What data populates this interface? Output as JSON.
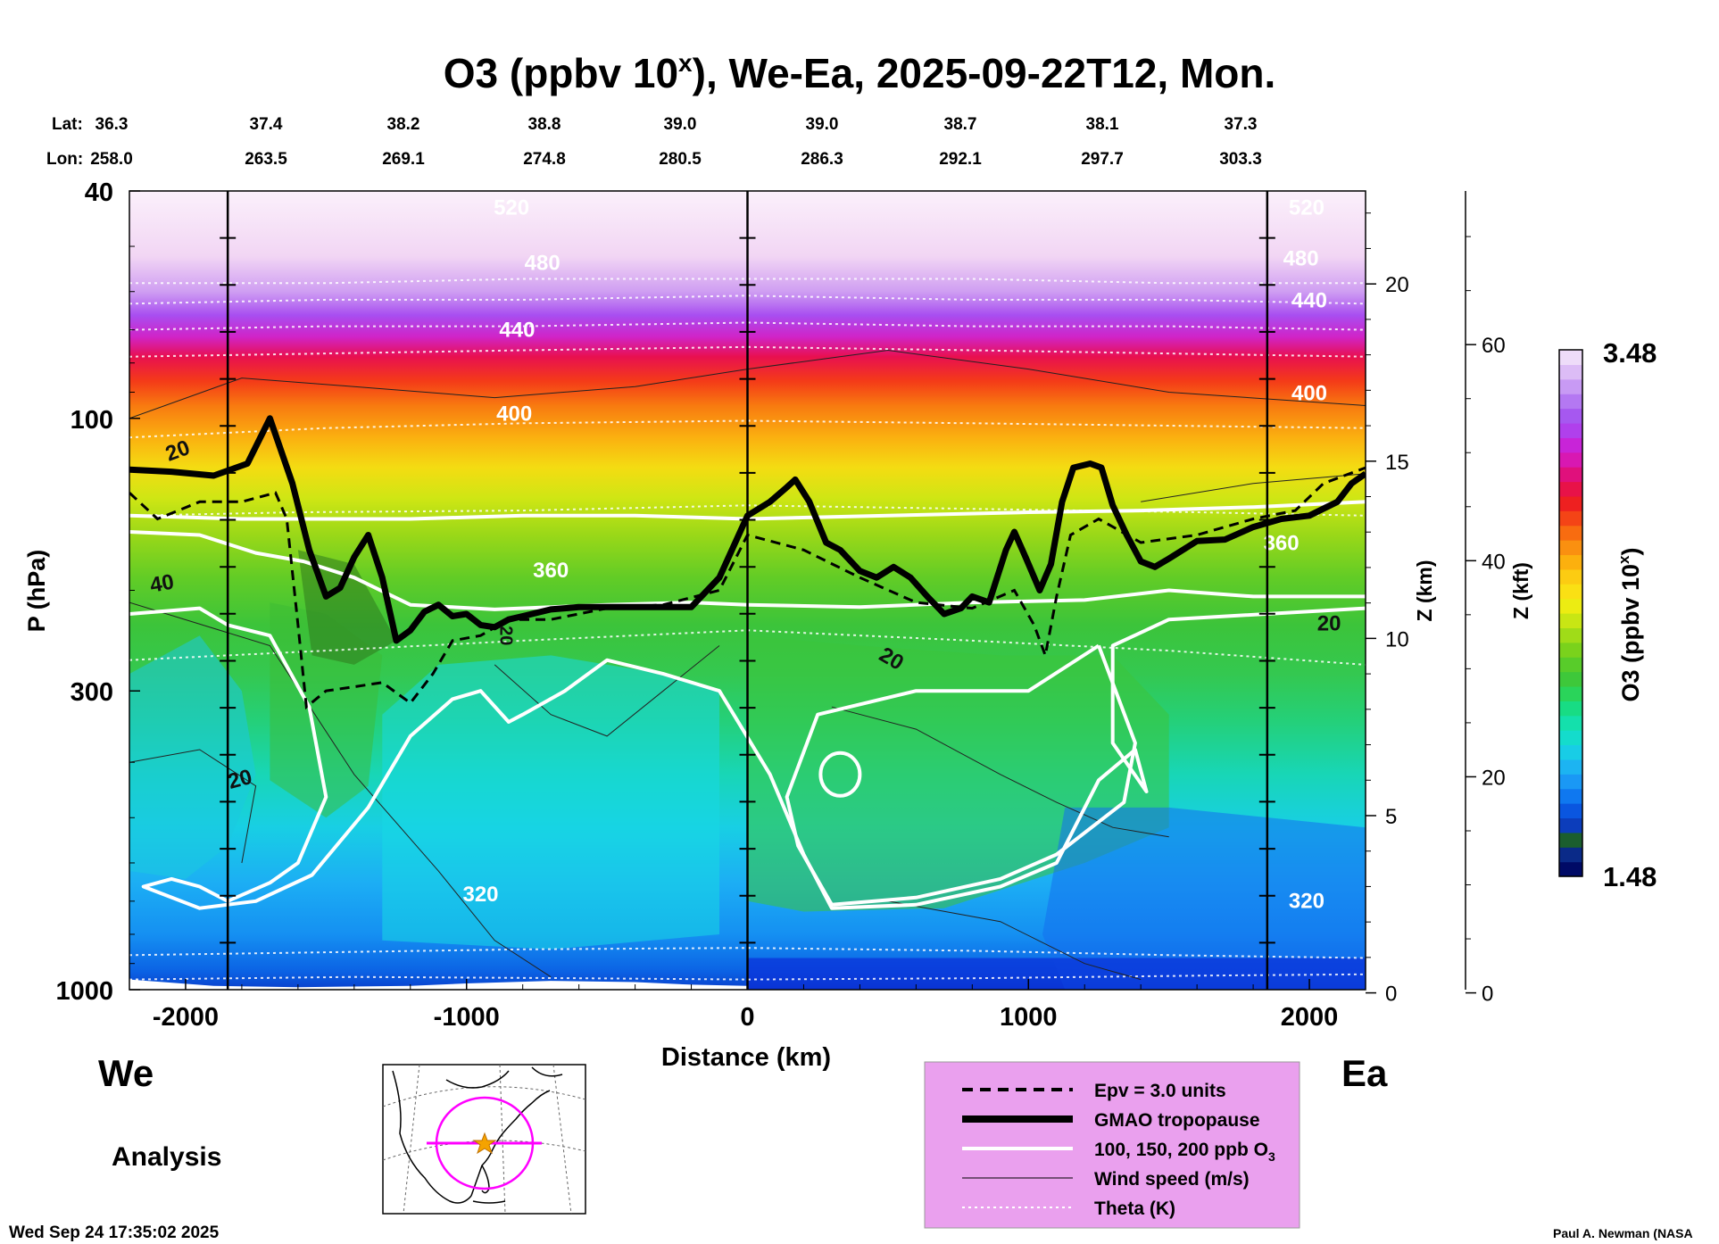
{
  "chart_data": {
    "type": "heatmap",
    "title_main": "O3 (ppbv 10",
    "title_sup": "x",
    "title_rest": "), We-Ea, 2025-09-22T12, Mon.",
    "xlabel": "Distance (km)",
    "ylabel": "P (hPa)",
    "x_range_km": [
      -2200,
      2200
    ],
    "x_ticks": [
      -2000,
      -1000,
      0,
      1000,
      2000
    ],
    "x_tick_labels": [
      "-2000",
      "-1000",
      "0",
      "1000",
      "2000"
    ],
    "y_range_hpa": [
      1000,
      40
    ],
    "y_ticks": [
      40,
      100,
      300,
      1000
    ],
    "y_tick_labels": [
      "40",
      "100",
      "300",
      "1000"
    ],
    "z_km_label": "Z (km)",
    "z_km_ticks": [
      0,
      5,
      10,
      15,
      20
    ],
    "z_km_tick_labels": [
      "0",
      "5",
      "10",
      "15",
      "20"
    ],
    "z_kft_label": "Z (kft)",
    "z_kft_ticks": [
      0,
      20,
      40,
      60
    ],
    "z_kft_tick_labels": [
      "0",
      "20",
      "40",
      "60"
    ],
    "vertical_markers_km": [
      -1850,
      0,
      1850
    ],
    "lat_label": "Lat:",
    "lon_label": "Lon:",
    "lat": [
      "36.3",
      "37.4",
      "38.2",
      "38.8",
      "39.0",
      "39.0",
      "38.7",
      "38.1",
      "37.3"
    ],
    "lon": [
      "258.0",
      "263.5",
      "269.1",
      "274.8",
      "280.5",
      "286.3",
      "292.1",
      "297.7",
      "303.3"
    ],
    "direction_left": "We",
    "direction_right": "Ea",
    "product": "Analysis",
    "colorbar": {
      "label_main": "O3 (ppbv 10",
      "label_sup": "x",
      "label_end": ")",
      "min_label": "1.48",
      "max_label": "3.48",
      "min": 1.48,
      "max": 3.48,
      "colors": [
        "#000a66",
        "#0a2a88",
        "#1b5e2e",
        "#0c3dbb",
        "#0a56e0",
        "#0f78f0",
        "#1a98f5",
        "#1cb4f2",
        "#18cde6",
        "#14dccc",
        "#14e0ac",
        "#18dc84",
        "#2ad45a",
        "#3ec83a",
        "#58cc2a",
        "#7ad21c",
        "#a0dc18",
        "#c8e614",
        "#ecec12",
        "#fae014",
        "#fccc12",
        "#fcb00e",
        "#fa9010",
        "#f86c10",
        "#f44416",
        "#ee2020",
        "#e81248",
        "#e0107c",
        "#d818b2",
        "#c824d8",
        "#b040ec",
        "#a658f0",
        "#b478f2",
        "#c89af4",
        "#dcbcf6",
        "#eedcf9"
      ]
    },
    "theta_labels": [
      "320",
      "360",
      "400",
      "440",
      "480",
      "520"
    ],
    "wind_labels": [
      "20",
      "40"
    ],
    "legend": [
      {
        "key": "epv",
        "label": "Epv = 3.0 units"
      },
      {
        "key": "tropopause",
        "label": "GMAO tropopause"
      },
      {
        "key": "o3",
        "label": "100, 150, 200 ppb O"
      },
      {
        "key": "wind",
        "label": "Wind speed (m/s)"
      },
      {
        "key": "theta",
        "label": "Theta (K)"
      }
    ],
    "legend_sub": "3",
    "tropopause_hpa": [
      [
        -2200,
        123
      ],
      [
        -2050,
        124
      ],
      [
        -1900,
        126
      ],
      [
        -1780,
        120
      ],
      [
        -1700,
        100
      ],
      [
        -1620,
        130
      ],
      [
        -1560,
        170
      ],
      [
        -1500,
        205
      ],
      [
        -1450,
        198
      ],
      [
        -1400,
        175
      ],
      [
        -1350,
        160
      ],
      [
        -1300,
        190
      ],
      [
        -1250,
        245
      ],
      [
        -1200,
        235
      ],
      [
        -1150,
        218
      ],
      [
        -1100,
        212
      ],
      [
        -1050,
        222
      ],
      [
        -1000,
        220
      ],
      [
        -950,
        230
      ],
      [
        -900,
        232
      ],
      [
        -850,
        225
      ],
      [
        -800,
        222
      ],
      [
        -700,
        216
      ],
      [
        -600,
        214
      ],
      [
        -400,
        214
      ],
      [
        -200,
        214
      ],
      [
        -100,
        190
      ],
      [
        0,
        148
      ],
      [
        80,
        140
      ],
      [
        140,
        132
      ],
      [
        170,
        128
      ],
      [
        220,
        140
      ],
      [
        280,
        165
      ],
      [
        330,
        170
      ],
      [
        400,
        185
      ],
      [
        460,
        190
      ],
      [
        520,
        182
      ],
      [
        580,
        190
      ],
      [
        640,
        205
      ],
      [
        700,
        220
      ],
      [
        760,
        215
      ],
      [
        800,
        205
      ],
      [
        860,
        210
      ],
      [
        920,
        170
      ],
      [
        950,
        158
      ],
      [
        990,
        175
      ],
      [
        1040,
        200
      ],
      [
        1080,
        180
      ],
      [
        1120,
        140
      ],
      [
        1160,
        122
      ],
      [
        1220,
        120
      ],
      [
        1260,
        122
      ],
      [
        1300,
        142
      ],
      [
        1350,
        160
      ],
      [
        1400,
        178
      ],
      [
        1450,
        182
      ],
      [
        1500,
        176
      ],
      [
        1600,
        164
      ],
      [
        1700,
        163
      ],
      [
        1800,
        155
      ],
      [
        1900,
        150
      ],
      [
        2000,
        148
      ],
      [
        2100,
        140
      ],
      [
        2150,
        130
      ],
      [
        2200,
        125
      ]
    ],
    "source_label": "Paul A. Newman (NASA",
    "timestamp": "Wed Sep 24 17:35:02 2025"
  }
}
